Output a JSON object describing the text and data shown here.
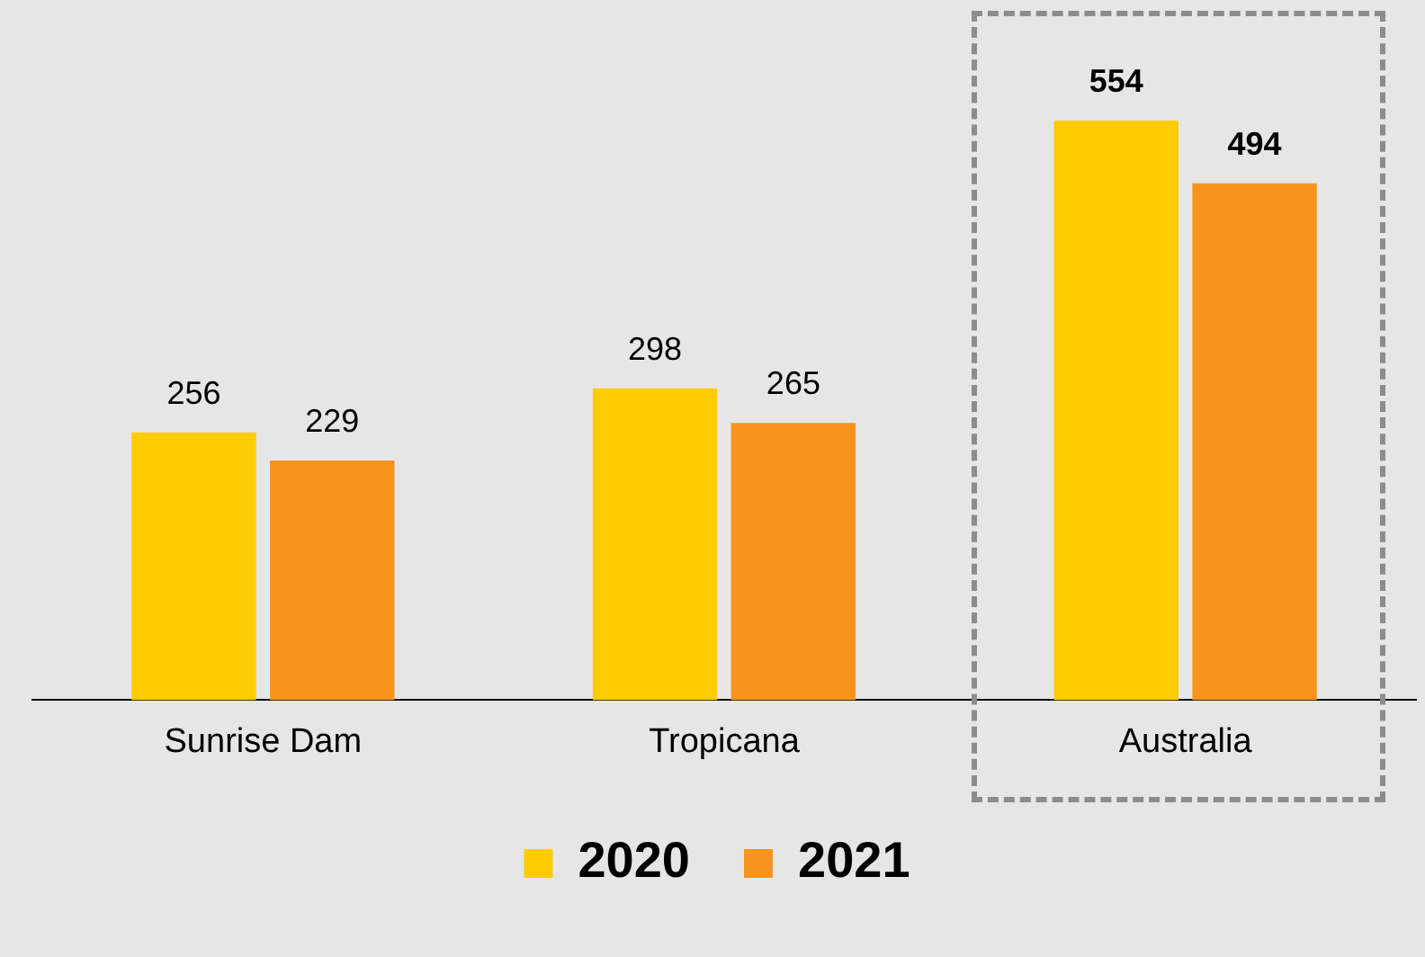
{
  "chart_data": {
    "type": "bar",
    "categories": [
      "Sunrise Dam",
      "Tropicana",
      "Australia"
    ],
    "series": [
      {
        "name": "2020",
        "color": "#ffcc00",
        "values": [
          256,
          298,
          554
        ]
      },
      {
        "name": "2021",
        "color": "#f7941d",
        "values": [
          229,
          265,
          494
        ]
      }
    ],
    "relative": false,
    "data_labels": true,
    "legend": "bottom",
    "grid": false
  }
}
